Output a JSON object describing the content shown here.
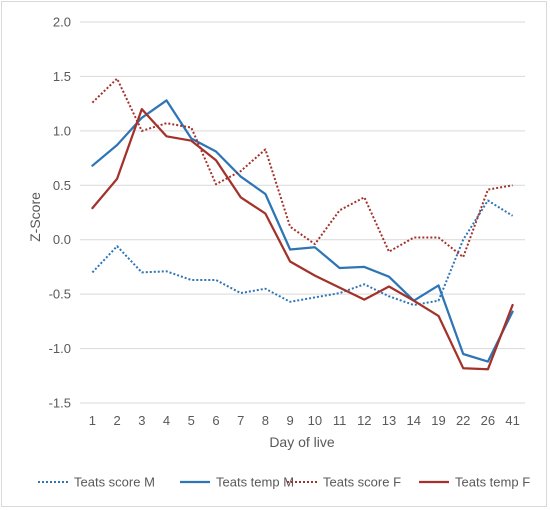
{
  "chart_data": {
    "type": "line",
    "title": "",
    "xlabel": "Day of live",
    "ylabel": "Z-Score",
    "categories": [
      "1",
      "2",
      "3",
      "4",
      "5",
      "6",
      "7",
      "8",
      "9",
      "10",
      "11",
      "12",
      "13",
      "14",
      "19",
      "22",
      "26",
      "41"
    ],
    "ylim": [
      -1.5,
      2.0
    ],
    "yticks": [
      "-1.5",
      "-1.0",
      "-0.5",
      "0.0",
      "0.5",
      "1.0",
      "1.5",
      "2.0"
    ],
    "ytick_values": [
      -1.5,
      -1.0,
      -0.5,
      0.0,
      0.5,
      1.0,
      1.5,
      2.0
    ],
    "grid": "horizontal",
    "legend_position": "bottom",
    "series": [
      {
        "name": "Teats score M",
        "color": "#2e75b6",
        "style": "dotted",
        "values": [
          -0.3,
          -0.06,
          -0.3,
          -0.29,
          -0.37,
          -0.37,
          -0.49,
          -0.45,
          -0.57,
          -0.53,
          -0.49,
          -0.41,
          -0.52,
          -0.6,
          -0.56,
          0.0,
          0.36,
          0.22
        ]
      },
      {
        "name": "Teats temp M",
        "color": "#2e75b6",
        "style": "solid",
        "values": [
          0.68,
          0.87,
          1.12,
          1.28,
          0.93,
          0.81,
          0.58,
          0.42,
          -0.09,
          -0.07,
          -0.26,
          -0.25,
          -0.34,
          -0.56,
          -0.42,
          -1.05,
          -1.12,
          -0.66
        ]
      },
      {
        "name": "Teats score F",
        "color": "#a3322a",
        "style": "dotted",
        "values": [
          1.26,
          1.48,
          1.0,
          1.07,
          1.03,
          0.51,
          0.63,
          0.83,
          0.12,
          -0.04,
          0.27,
          0.39,
          -0.11,
          0.02,
          0.02,
          -0.16,
          0.46,
          0.5
        ]
      },
      {
        "name": "Teats temp F",
        "color": "#a3322a",
        "style": "solid",
        "values": [
          0.29,
          0.56,
          1.2,
          0.95,
          0.91,
          0.73,
          0.39,
          0.24,
          -0.2,
          -0.33,
          -0.44,
          -0.55,
          -0.43,
          -0.56,
          -0.7,
          -1.18,
          -1.19,
          -0.6
        ]
      }
    ]
  }
}
